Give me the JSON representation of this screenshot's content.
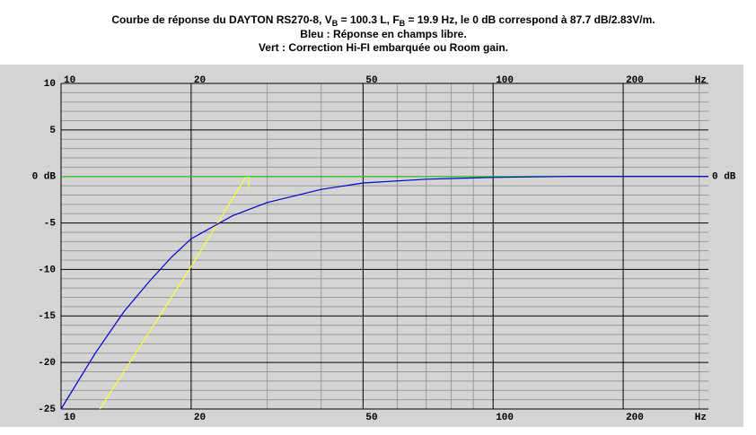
{
  "chart_data": {
    "type": "line",
    "title_parts": [
      "Courbe de réponse du DAYTON RS270-8, V",
      "B",
      " = 100.3 L, F",
      "B",
      " = 19.9 Hz, le 0 dB correspond à 87.7 dB/2.83V/m."
    ],
    "subtitle_lines": [
      "Bleu : Réponse en champs libre.",
      "Vert : Correction Hi-FI embarquée ou Room gain."
    ],
    "x_unit": "Hz",
    "log_x": true,
    "xlim": [
      10,
      315
    ],
    "ylim": [
      -25,
      10
    ],
    "xticks": [
      10,
      20,
      50,
      100,
      200
    ],
    "xminor": [
      30,
      40,
      60,
      70,
      80,
      90,
      300
    ],
    "yticks": [
      10,
      5,
      {
        "value": 0,
        "label": "0 dB"
      },
      -5,
      -10,
      -15,
      -20,
      -25
    ],
    "yminor": [
      9,
      8,
      7,
      6,
      4,
      3,
      2,
      1,
      -1,
      -2,
      -3,
      -4,
      -6,
      -7,
      -8,
      -9,
      -11,
      -12,
      -13,
      -14,
      -16,
      -17,
      -18,
      -19,
      -21,
      -22,
      -23,
      -24
    ],
    "series": [
      {
        "color": "#ffff33",
        "x": [
          12.3,
          20,
          26.8,
          27.2,
          27.2
        ],
        "values": [
          -25,
          -9.7,
          0,
          0,
          -1.3
        ]
      },
      {
        "color": "#33dd33",
        "x": [
          10,
          150
        ],
        "values": [
          0,
          0
        ]
      },
      {
        "color": "#0000cc",
        "x": [
          10,
          12,
          14,
          16,
          18,
          20,
          25,
          30,
          40,
          50,
          70,
          100,
          150,
          200,
          315
        ],
        "values": [
          -25,
          -19,
          -14.5,
          -11.3,
          -8.7,
          -6.7,
          -4.2,
          -2.8,
          -1.4,
          -0.7,
          -0.3,
          -0.1,
          0,
          0,
          0
        ]
      }
    ]
  }
}
